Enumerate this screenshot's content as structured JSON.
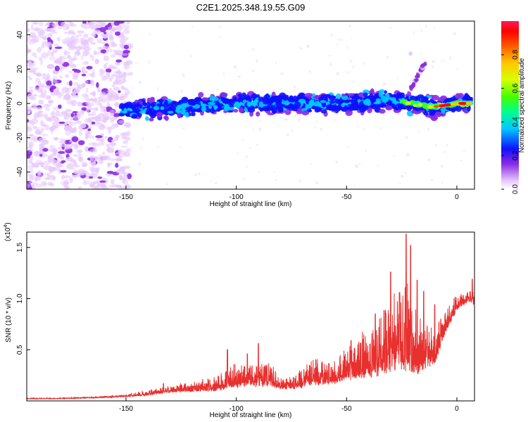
{
  "chart_data": [
    {
      "type": "heatmap",
      "title": "C2E1.2025.348.19.55.G09",
      "xlabel": "Height of straight line (km)",
      "ylabel": "Frequency (Hz)",
      "xlim": [
        -195,
        8
      ],
      "ylim": [
        -50,
        48
      ],
      "xticks": [
        -150,
        -100,
        -50,
        0
      ],
      "xtick_labels": [
        "-150",
        "-100",
        "-50",
        "0"
      ],
      "yticks": [
        -40,
        -20,
        0,
        20,
        40
      ],
      "ytick_labels": [
        "-40",
        "-20",
        "0",
        "20",
        "40"
      ],
      "colorbar": {
        "label": "Normalized spectral amplitude",
        "range": [
          0,
          1
        ],
        "ticks": [
          0,
          0.2,
          0.4,
          0.6,
          0.8
        ],
        "tick_labels": [
          "0.0",
          "0.2",
          "0.4",
          "0.6",
          "0.8"
        ],
        "colormap": "rainbow"
      },
      "features": [
        {
          "description": "main tone",
          "x": [
            -150,
            -100,
            -50,
            -30,
            -10,
            0,
            7
          ],
          "y": [
            -4,
            0,
            0,
            2,
            -2,
            0,
            0
          ],
          "peak_amplitude": 1.0
        },
        {
          "description": "noise region",
          "x_range": [
            -195,
            -150
          ],
          "y_range": [
            -50,
            48
          ]
        },
        {
          "description": "branch",
          "x": [
            -22,
            -17,
            -14
          ],
          "y": [
            5,
            18,
            24
          ]
        },
        {
          "description": "spot",
          "x": -21,
          "y": 29
        }
      ]
    },
    {
      "type": "line",
      "xlabel": "Height of straight line (km)",
      "ylabel": "SNR (10 * v/v)",
      "yscale_label": "(x10",
      "yscale_exp": "4",
      "xlim": [
        -195,
        8
      ],
      "ylim": [
        0,
        16500
      ],
      "xticks": [
        -150,
        -100,
        -50,
        0
      ],
      "xtick_labels": [
        "-150",
        "-100",
        "-50",
        "0"
      ],
      "yticks": [
        5000,
        10000,
        15000
      ],
      "ytick_labels": [
        "0.5",
        "1.0",
        "1.5"
      ],
      "color": "#e8302e",
      "series": [
        {
          "name": "SNR",
          "x": [
            -195,
            -180,
            -165,
            -150,
            -140,
            -130,
            -120,
            -110,
            -100,
            -95,
            -90,
            -85,
            -80,
            -75,
            -70,
            -65,
            -60,
            -55,
            -50,
            -45,
            -40,
            -35,
            -30,
            -25,
            -22,
            -20,
            -15,
            -10,
            -5,
            0,
            5,
            8
          ],
          "base": [
            200,
            220,
            300,
            420,
            600,
            900,
            1000,
            1100,
            1600,
            1700,
            1600,
            1700,
            1300,
            1200,
            1500,
            1900,
            1800,
            2000,
            2400,
            2600,
            2800,
            3200,
            3600,
            3800,
            3600,
            3400,
            3200,
            4000,
            7000,
            9000,
            9800,
            9500
          ],
          "amp": [
            80,
            90,
            120,
            200,
            500,
            700,
            900,
            1400,
            2400,
            2400,
            2000,
            2200,
            1400,
            1200,
            1800,
            2500,
            2000,
            2400,
            3000,
            3800,
            4500,
            5500,
            6500,
            8500,
            9000,
            7000,
            5000,
            3800,
            2200,
            1500,
            1200,
            1200
          ],
          "peaks": [
            {
              "x": -23,
              "y": 16300
            },
            {
              "x": -21,
              "y": 15200
            },
            {
              "x": -30,
              "y": 12600
            },
            {
              "x": -18,
              "y": 11800
            },
            {
              "x": -15,
              "y": 10700
            },
            {
              "x": -26,
              "y": 10600
            },
            {
              "x": -10,
              "y": 9400
            },
            {
              "x": 7,
              "y": 11900
            },
            {
              "x": -104,
              "y": 5000
            },
            {
              "x": -90,
              "y": 5600
            },
            {
              "x": -95,
              "y": 4600
            },
            {
              "x": -48,
              "y": 5900
            },
            {
              "x": -37,
              "y": 8500
            },
            {
              "x": -133,
              "y": 1700
            }
          ]
        }
      ]
    }
  ]
}
